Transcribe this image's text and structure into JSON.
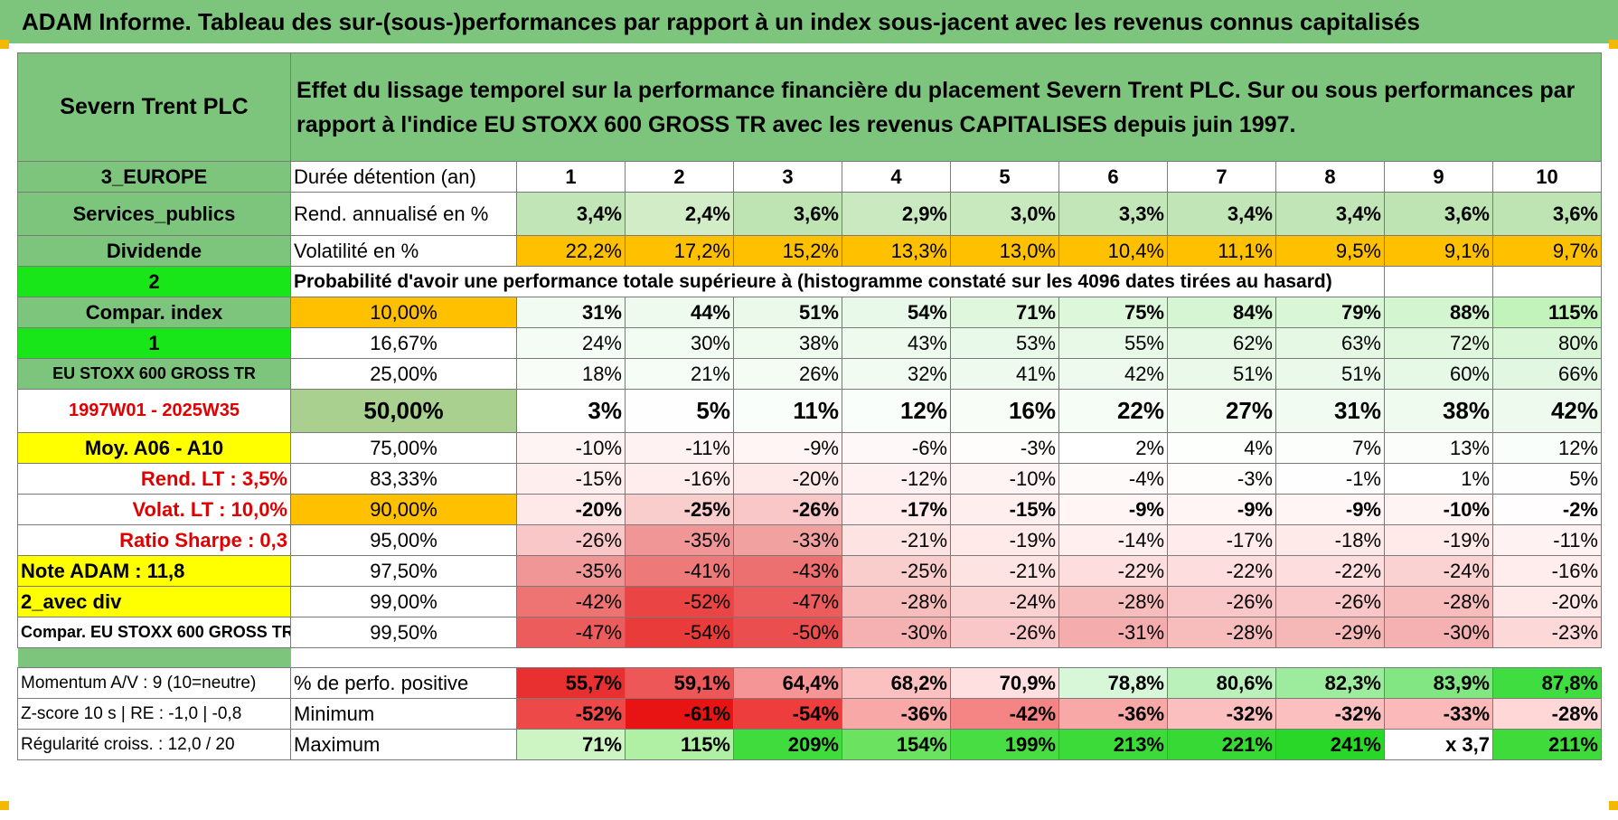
{
  "title": "ADAM Informe. Tableau des sur-(sous-)performances par rapport à un index sous-jacent avec les revenus connus capitalisés",
  "header": {
    "company": "Severn Trent PLC",
    "description": "Effet du lissage temporel sur la performance financière du placement Severn Trent PLC. Sur ou sous performances par rapport à l'indice EU STOXX 600 GROSS TR avec les revenus CAPITALISES depuis juin 1997."
  },
  "colors": {
    "header_green": "#7dc47d",
    "bright_green": "#19e619",
    "yellow": "#ffff00",
    "orange": "#ffc000",
    "red_text": "#e00000"
  },
  "rows": {
    "durations": {
      "left": "3_EUROPE",
      "label": "Durée détention (an)",
      "values": [
        "1",
        "2",
        "3",
        "4",
        "5",
        "6",
        "7",
        "8",
        "9",
        "10"
      ]
    },
    "returns": {
      "left": "Services_publics",
      "label": "Rend. annualisé en %",
      "values": [
        "3,4%",
        "2,4%",
        "3,6%",
        "2,9%",
        "3,0%",
        "3,3%",
        "3,4%",
        "3,4%",
        "3,6%",
        "3,6%"
      ]
    },
    "volatility": {
      "left": "Dividende",
      "label": "Volatilité en %",
      "values": [
        "22,2%",
        "17,2%",
        "15,2%",
        "13,3%",
        "13,0%",
        "10,4%",
        "11,1%",
        "9,5%",
        "9,1%",
        "9,7%"
      ]
    },
    "prob_header": {
      "left": "2",
      "label": "Probabilité d'avoir une performance totale supérieure à (histogramme constaté sur les 4096 dates tirées au hasard)"
    },
    "spacer": {
      "left": "",
      "label": ""
    },
    "momentum": {
      "left": "Momentum A/V : 9 (10=neutre)",
      "label": "% de perfo. positive",
      "values": [
        "55,7%",
        "59,1%",
        "64,4%",
        "68,2%",
        "70,9%",
        "78,8%",
        "80,6%",
        "82,3%",
        "83,9%",
        "87,8%"
      ]
    },
    "minimum": {
      "left": "Z-score 10 s | RE : -1,0 | -0,8",
      "label": "Minimum",
      "values": [
        "-52%",
        "-61%",
        "-54%",
        "-36%",
        "-42%",
        "-36%",
        "-32%",
        "-32%",
        "-33%",
        "-28%"
      ]
    },
    "maximum": {
      "left": "Régularité croiss. : 12,0 / 20",
      "label": "Maximum",
      "values": [
        "71%",
        "115%",
        "209%",
        "154%",
        "199%",
        "213%",
        "221%",
        "241%",
        "x 3,7",
        "211%"
      ]
    }
  },
  "percentiles": [
    {
      "left": "Compar. index",
      "p": "10,00%",
      "values": [
        "31%",
        "44%",
        "51%",
        "54%",
        "71%",
        "75%",
        "84%",
        "79%",
        "88%",
        "115%"
      ]
    },
    {
      "left": "1",
      "p": "16,67%",
      "values": [
        "24%",
        "30%",
        "38%",
        "43%",
        "53%",
        "55%",
        "62%",
        "63%",
        "72%",
        "80%"
      ]
    },
    {
      "left": "EU STOXX 600 GROSS TR",
      "p": "25,00%",
      "values": [
        "18%",
        "21%",
        "26%",
        "32%",
        "41%",
        "42%",
        "51%",
        "51%",
        "60%",
        "66%"
      ]
    },
    {
      "left": "1997W01 - 2025W35",
      "p": "50,00%",
      "values": [
        "3%",
        "5%",
        "11%",
        "12%",
        "16%",
        "22%",
        "27%",
        "31%",
        "38%",
        "42%"
      ]
    },
    {
      "left": "Moy. A06 - A10",
      "p": "75,00%",
      "values": [
        "-10%",
        "-11%",
        "-9%",
        "-6%",
        "-3%",
        "2%",
        "4%",
        "7%",
        "13%",
        "12%"
      ]
    },
    {
      "left": "Rend. LT :   3,5%",
      "p": "83,33%",
      "values": [
        "-15%",
        "-16%",
        "-20%",
        "-12%",
        "-10%",
        "-4%",
        "-3%",
        "-1%",
        "1%",
        "5%"
      ]
    },
    {
      "left": "Volat. LT :   10,0%",
      "p": "90,00%",
      "values": [
        "-20%",
        "-25%",
        "-26%",
        "-17%",
        "-15%",
        "-9%",
        "-9%",
        "-9%",
        "-10%",
        "-2%"
      ]
    },
    {
      "left": "Ratio Sharpe :     0,3",
      "p": "95,00%",
      "values": [
        "-26%",
        "-35%",
        "-33%",
        "-21%",
        "-19%",
        "-14%",
        "-17%",
        "-18%",
        "-19%",
        "-11%"
      ]
    },
    {
      "left": "Note ADAM : 11,8",
      "p": "97,50%",
      "values": [
        "-35%",
        "-41%",
        "-43%",
        "-25%",
        "-21%",
        "-22%",
        "-22%",
        "-22%",
        "-24%",
        "-16%"
      ]
    },
    {
      "left": "2_avec div",
      "p": "99,00%",
      "values": [
        "-42%",
        "-52%",
        "-47%",
        "-28%",
        "-24%",
        "-28%",
        "-26%",
        "-26%",
        "-28%",
        "-20%"
      ]
    },
    {
      "left": "Compar. EU STOXX 600 GROSS TR",
      "p": "99,50%",
      "values": [
        "-47%",
        "-54%",
        "-50%",
        "-30%",
        "-26%",
        "-31%",
        "-28%",
        "-29%",
        "-30%",
        "-23%"
      ]
    }
  ]
}
